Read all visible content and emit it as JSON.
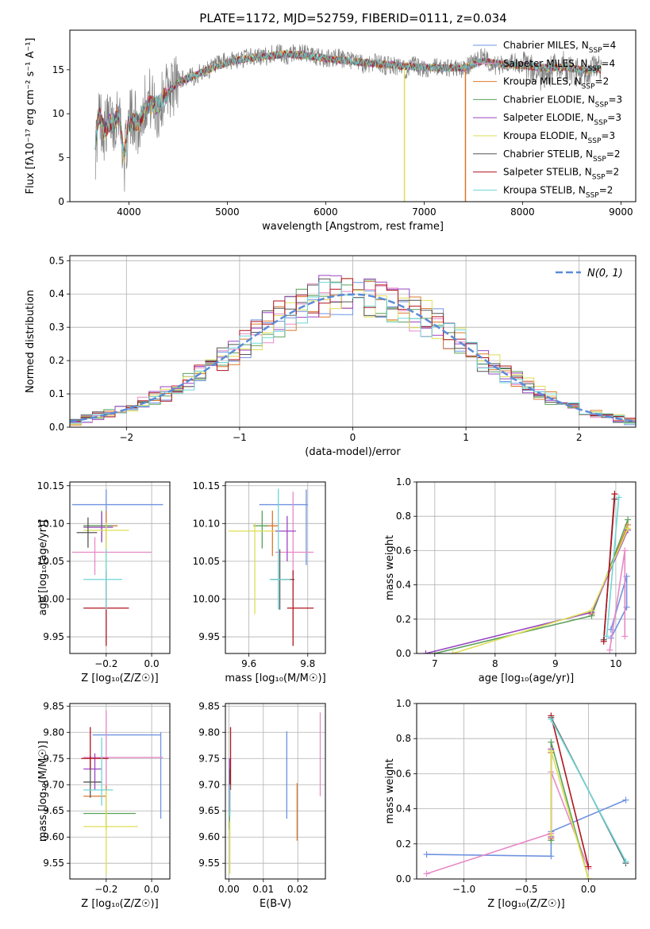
{
  "figure": {
    "title": "PLATE=1172, MJD=52759, FIBERID=0111, z=0.034"
  },
  "colors": [
    "#6f93e0",
    "#e889c7",
    "#d9782e",
    "#5aa05a",
    "#9b45c3",
    "#dede55",
    "#555555",
    "#b0141e",
    "#6fd5d5"
  ],
  "legend": {
    "model_labels": [
      "Chabrier MILES, N<sub>SSP</sub>=4",
      "Salpeter MILES, N<sub>SSP</sub>=4",
      "Kroupa MILES, N<sub>SSP</sub>=2",
      "Chabrier ELODIE, N<sub>SSP</sub>=3",
      "Salpeter ELODIE, N<sub>SSP</sub>=3",
      "Kroupa ELODIE, N<sub>SSP</sub>=3",
      "Chabrier STELIB, N<sub>SSP</sub>=2",
      "Salpeter STELIB, N<sub>SSP</sub>=2",
      "Kroupa STELIB, N<sub>SSP</sub>=2"
    ],
    "normal_label": "N(0, 1)"
  },
  "chart_data": [
    {
      "id": "spectrum",
      "type": "line",
      "xlabel": "wavelength [Angstrom, rest frame]",
      "ylabel": "Flux [fλ10⁻¹⁷ erg cm⁻² s⁻¹ A⁻¹]",
      "xlim": [
        3400,
        9150
      ],
      "ylim": [
        0,
        19.5
      ],
      "xticks": [
        4000,
        5000,
        6000,
        7000,
        8000,
        9000
      ],
      "yticks": [
        0,
        5,
        10,
        15
      ],
      "observed_color": "#808080",
      "observed": {
        "x": [
          3660,
          3700,
          3750,
          3800,
          3850,
          3900,
          3950,
          4000,
          4050,
          4100,
          4150,
          4200,
          4250,
          4300,
          4350,
          4400,
          4450,
          4500,
          4600,
          4700,
          4800,
          4900,
          5000,
          5100,
          5200,
          5300,
          5400,
          5500,
          5600,
          5700,
          5800,
          5900,
          6000,
          6100,
          6200,
          6300,
          6400,
          6500,
          6600,
          6700,
          6800,
          6900,
          7000,
          7100,
          7200,
          7300,
          7400,
          7500,
          7600,
          7700,
          7800,
          7900,
          8000,
          8100,
          8200,
          8300,
          8400,
          8500,
          8600,
          8700,
          8800
        ],
        "y": [
          6,
          10,
          8,
          9.5,
          9,
          11,
          4,
          9,
          10,
          8,
          11,
          12,
          11,
          10,
          12,
          13,
          13,
          14,
          14,
          14.5,
          15,
          15.5,
          16,
          16,
          16.5,
          16.5,
          16.5,
          17,
          16.5,
          17,
          16.8,
          16.5,
          16.2,
          16.5,
          16,
          16,
          15.5,
          16,
          15.5,
          15.5,
          15,
          15.5,
          15,
          15.5,
          15,
          15.2,
          15,
          16,
          16.5,
          15.5,
          15.5,
          16,
          15.5,
          15,
          14,
          15,
          15.5,
          15,
          14.5,
          15,
          15
        ]
      },
      "model": {
        "x": [
          3660,
          3700,
          3750,
          3800,
          3850,
          3900,
          3950,
          4000,
          4100,
          4200,
          4300,
          4400,
          4500,
          4600,
          4800,
          5000,
          5200,
          5400,
          5600,
          5800,
          6000,
          6200,
          6400,
          6600,
          6800,
          7000,
          7200,
          7400,
          7600,
          7800,
          8000,
          8200,
          8400,
          8600,
          8800
        ],
        "y": [
          7,
          10,
          8,
          9,
          9,
          10,
          5,
          9,
          9,
          11,
          11,
          12.5,
          13.5,
          14,
          15,
          15.8,
          16.3,
          16.5,
          16.8,
          16.6,
          16.3,
          16,
          15.8,
          15.6,
          15.4,
          15.3,
          15.2,
          15.2,
          16,
          15.6,
          15.5,
          15.2,
          15.3,
          15,
          15
        ]
      },
      "cutoffs": [
        {
          "x": 6800,
          "color": "#dede55"
        },
        {
          "x": 7420,
          "color": "#d9782e"
        }
      ]
    },
    {
      "id": "residuals",
      "type": "histogram",
      "xlabel": "(data-model)/error",
      "ylabel": "Normed distribution",
      "xlim": [
        -2.5,
        2.5
      ],
      "ylim": [
        0,
        0.515
      ],
      "xticks": [
        -2,
        -1,
        0,
        1,
        2
      ],
      "yticks": [
        0.0,
        0.1,
        0.2,
        0.3,
        0.4,
        0.5
      ],
      "bin_width": 0.1,
      "normal_curve_color": "#5b8bd6"
    },
    {
      "id": "age_vs_Z",
      "type": "scatter",
      "xlabel": "Z [log₁₀(Z/Z☉)]",
      "ylabel": "age  [log₁₀(age/yr)]",
      "xlim": [
        -0.36,
        0.08
      ],
      "ylim": [
        9.928,
        10.155
      ],
      "xticks": [
        -0.2,
        0.0
      ],
      "yticks": [
        9.95,
        10.0,
        10.05,
        10.1,
        10.15
      ],
      "points": [
        {
          "x": -0.2,
          "y": 10.125,
          "xerr": [
            0.15,
            0.25
          ],
          "yerr": [
            0.06,
            0.02
          ]
        },
        {
          "x": -0.25,
          "y": 10.062,
          "xerr": [
            0.1,
            0.25
          ],
          "yerr": [
            0.03,
            0.02
          ]
        },
        {
          "x": -0.2,
          "y": 10.097,
          "xerr": [
            0.1,
            0.05
          ],
          "yerr": [
            0.02,
            0.02
          ]
        },
        {
          "x": -0.22,
          "y": 10.097,
          "xerr": [
            0.08,
            0.05
          ],
          "yerr": [
            0.02,
            0.02
          ]
        },
        {
          "x": -0.22,
          "y": 10.095,
          "xerr": [
            0.08,
            0.05
          ],
          "yerr": [
            0.02,
            0.02
          ]
        },
        {
          "x": -0.2,
          "y": 10.091,
          "xerr": [
            0.1,
            0.1
          ],
          "yerr": [
            0.08,
            0.01
          ]
        },
        {
          "x": -0.28,
          "y": 10.088,
          "xerr": [
            0.05,
            0.04
          ],
          "yerr": [
            0.02,
            0.02
          ]
        },
        {
          "x": -0.2,
          "y": 9.988,
          "xerr": [
            0.1,
            0.1
          ],
          "yerr": [
            0.05,
            0.05
          ]
        },
        {
          "x": -0.2,
          "y": 10.026,
          "xerr": [
            0.1,
            0.07
          ],
          "yerr": [
            0.04,
            0.04
          ]
        }
      ]
    },
    {
      "id": "age_vs_mass",
      "type": "scatter",
      "xlabel": "mass [log₁₀(M/M☉)]",
      "ylabel": "",
      "xlim": [
        9.52,
        9.86
      ],
      "ylim": [
        9.928,
        10.155
      ],
      "xticks": [
        9.6,
        9.8
      ],
      "yticks": [
        9.95,
        10.0,
        10.05,
        10.1,
        10.15
      ],
      "points": [
        {
          "x": 9.795,
          "y": 10.125,
          "xerr": [
            0.16,
            0.005
          ],
          "yerr": [
            0.08,
            0.02
          ]
        },
        {
          "x": 9.75,
          "y": 10.062,
          "xerr": [
            0.06,
            0.07
          ],
          "yerr": [
            0.03,
            0.08
          ]
        },
        {
          "x": 9.68,
          "y": 10.097,
          "xerr": [
            0.03,
            0.02
          ],
          "yerr": [
            0.04,
            0.02
          ]
        },
        {
          "x": 9.645,
          "y": 10.097,
          "xerr": [
            0.03,
            0.02
          ],
          "yerr": [
            0.03,
            0.02
          ]
        },
        {
          "x": 9.73,
          "y": 10.09,
          "xerr": [
            0.04,
            0.03
          ],
          "yerr": [
            0.04,
            0.02
          ]
        },
        {
          "x": 9.62,
          "y": 10.09,
          "xerr": [
            0.09,
            0.07
          ],
          "yerr": [
            0.11,
            0.01
          ]
        },
        {
          "x": 9.705,
          "y": 10.026,
          "xerr": [
            0.03,
            0.05
          ],
          "yerr": [
            0.04,
            0.04
          ]
        },
        {
          "x": 9.75,
          "y": 9.988,
          "xerr": [
            0.02,
            0.07
          ],
          "yerr": [
            0.05,
            0.05
          ]
        },
        {
          "x": 9.7,
          "y": 10.026,
          "xerr": [
            0.03,
            0.04
          ],
          "yerr": [
            0.04,
            0.12
          ]
        }
      ]
    },
    {
      "id": "weight_vs_age",
      "type": "line",
      "xlabel": "age  [log₁₀(age/yr)]",
      "ylabel": "mass weight",
      "xlim": [
        6.7,
        10.33
      ],
      "ylim": [
        0,
        1.0
      ],
      "xticks": [
        7,
        8,
        9,
        10
      ],
      "yticks": [
        0.0,
        0.2,
        0.4,
        0.6,
        0.8,
        1.0
      ],
      "series": [
        {
          "x": [
            9.92,
            10.18,
            10.18,
            9.92
          ],
          "y": [
            0.09,
            0.27,
            0.45,
            0.14
          ]
        },
        {
          "x": [
            10.15,
            10.15,
            9.9
          ],
          "y": [
            0.1,
            0.6,
            0.02
          ]
        },
        {
          "x": [
            9.6,
            10.2
          ],
          "y": [
            0.23,
            0.75
          ]
        },
        {
          "x": [
            7.0,
            9.6,
            10.2
          ],
          "y": [
            0.0,
            0.22,
            0.78
          ]
        },
        {
          "x": [
            6.85,
            9.6,
            10.2
          ],
          "y": [
            0.0,
            0.24,
            0.72
          ]
        },
        {
          "x": [
            7.3,
            9.6,
            10.2
          ],
          "y": [
            0.0,
            0.25,
            0.73
          ]
        },
        {
          "x": [
            9.8,
            9.98
          ],
          "y": [
            0.08,
            0.9
          ]
        },
        {
          "x": [
            9.8,
            9.98
          ],
          "y": [
            0.07,
            0.93
          ]
        },
        {
          "x": [
            9.85,
            10.05
          ],
          "y": [
            0.1,
            0.91
          ]
        }
      ]
    },
    {
      "id": "mass_vs_Z",
      "type": "scatter",
      "xlabel": "Z [log₁₀(Z/Z☉)]",
      "ylabel": "mass [log₁₀(M/M☉)]",
      "xlim": [
        -0.36,
        0.08
      ],
      "ylim": [
        9.52,
        9.855
      ],
      "xticks": [
        -0.2,
        0.0
      ],
      "yticks": [
        9.55,
        9.6,
        9.65,
        9.7,
        9.75,
        9.8,
        9.85
      ],
      "points": [
        {
          "x": 0.04,
          "y": 9.795,
          "xerr": [
            0.3,
            0.0
          ],
          "yerr": [
            0.16,
            0.005
          ]
        },
        {
          "x": -0.2,
          "y": 9.752,
          "xerr": [
            0.1,
            0.25
          ],
          "yerr": [
            0.06,
            0.09
          ]
        },
        {
          "x": -0.2,
          "y": 9.678,
          "xerr": [
            0.1,
            0.0
          ],
          "yerr": [
            0.03,
            0.02
          ]
        },
        {
          "x": -0.2,
          "y": 9.645,
          "xerr": [
            0.1,
            0.13
          ],
          "yerr": [
            0.03,
            0.02
          ]
        },
        {
          "x": -0.25,
          "y": 9.73,
          "xerr": [
            0.05,
            0.03
          ],
          "yerr": [
            0.04,
            0.03
          ]
        },
        {
          "x": -0.2,
          "y": 9.62,
          "xerr": [
            0.1,
            0.14
          ],
          "yerr": [
            0.09,
            0.07
          ]
        },
        {
          "x": -0.27,
          "y": 9.705,
          "xerr": [
            0.03,
            0.05
          ],
          "yerr": [
            0.03,
            0.05
          ]
        },
        {
          "x": -0.27,
          "y": 9.75,
          "xerr": [
            0.04,
            0.08
          ],
          "yerr": [
            0.02,
            0.06
          ]
        },
        {
          "x": -0.22,
          "y": 9.69,
          "xerr": [
            0.08,
            0.05
          ],
          "yerr": [
            0.03,
            0.1
          ]
        }
      ]
    },
    {
      "id": "mass_vs_EBV",
      "type": "scatter",
      "xlabel": "E(B-V)",
      "ylabel": "",
      "xlim": [
        -0.001,
        0.028
      ],
      "ylim": [
        9.52,
        9.855
      ],
      "xticks": [
        0.0,
        0.01,
        0.02
      ],
      "yticks": [
        9.55,
        9.6,
        9.65,
        9.7,
        9.75,
        9.8,
        9.85
      ],
      "points": [
        {
          "x": 0.0168,
          "y": 9.718,
          "xerr": [
            0,
            0
          ],
          "yerr": [
            0.083,
            0.084
          ]
        },
        {
          "x": 0.0265,
          "y": 9.758,
          "xerr": [
            0,
            0
          ],
          "yerr": [
            0.08,
            0.08
          ]
        },
        {
          "x": 0.0198,
          "y": 9.648,
          "xerr": [
            0,
            0
          ],
          "yerr": [
            0.055,
            0.055
          ]
        },
        {
          "x": 0.0002,
          "y": 9.635,
          "xerr": [
            0,
            0
          ],
          "yerr": [
            0.02,
            0.04
          ]
        },
        {
          "x": 0.0002,
          "y": 9.7,
          "xerr": [
            0,
            0
          ],
          "yerr": [
            0.05,
            0.05
          ]
        },
        {
          "x": 0.0003,
          "y": 9.58,
          "xerr": [
            0,
            0
          ],
          "yerr": [
            0.05,
            0.05
          ]
        },
        {
          "x": 0.0003,
          "y": 9.69,
          "xerr": [
            0,
            0
          ],
          "yerr": [
            0.04,
            0.04
          ]
        },
        {
          "x": 0.0005,
          "y": 9.75,
          "xerr": [
            0,
            0
          ],
          "yerr": [
            0.06,
            0.06
          ]
        },
        {
          "x": 0.0003,
          "y": 9.67,
          "xerr": [
            0,
            0
          ],
          "yerr": [
            0.03,
            0.03
          ]
        }
      ]
    },
    {
      "id": "weight_vs_Z",
      "type": "line",
      "xlabel": "Z [log₁₀(Z/Z☉)]",
      "ylabel": "mass weight",
      "xlim": [
        -1.38,
        0.38
      ],
      "ylim": [
        0,
        1.0
      ],
      "xticks": [
        -1.0,
        -0.5,
        0.0
      ],
      "yticks": [
        0.0,
        0.2,
        0.4,
        0.6,
        0.8,
        1.0
      ],
      "series": [
        {
          "x": [
            -1.3,
            -0.3,
            -0.3,
            0.3
          ],
          "y": [
            0.14,
            0.13,
            0.27,
            0.45
          ]
        },
        {
          "x": [
            -1.3,
            -0.3,
            -0.3,
            0.0
          ],
          "y": [
            0.03,
            0.26,
            0.61,
            0.06
          ]
        },
        {
          "x": [
            -0.3,
            -0.3
          ],
          "y": [
            0.23,
            0.72
          ]
        },
        {
          "x": [
            -0.3,
            -0.3,
            0.0
          ],
          "y": [
            0.22,
            0.78,
            0.0
          ]
        },
        {
          "x": [
            -0.3,
            -0.3
          ],
          "y": [
            0.24,
            0.74
          ]
        },
        {
          "x": [
            -0.3,
            -0.3,
            0.0
          ],
          "y": [
            0.25,
            0.73,
            0.0
          ]
        },
        {
          "x": [
            -0.3,
            0.3
          ],
          "y": [
            0.92,
            0.09
          ]
        },
        {
          "x": [
            -0.3,
            0.0
          ],
          "y": [
            0.93,
            0.07
          ]
        },
        {
          "x": [
            -0.3,
            0.3
          ],
          "y": [
            0.91,
            0.1
          ]
        }
      ]
    }
  ]
}
